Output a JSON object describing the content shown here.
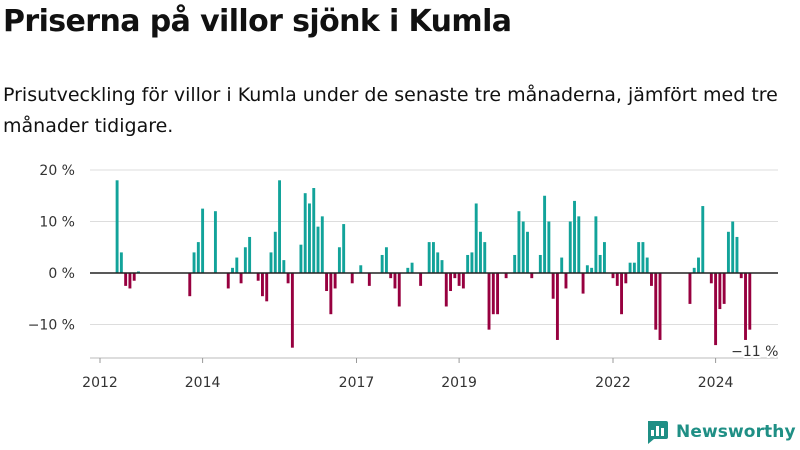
{
  "title": "Priserna på villor sjönk i Kumla",
  "subtitle": "Prisutveckling för villor i Kumla under de senaste tre månaderna, jämfört med tre månader tidigare.",
  "brand": {
    "name": "Newsworthy",
    "icon": "bar-chart-logo-icon"
  },
  "colors": {
    "positive": "#12a39a",
    "negative": "#97003f",
    "axis": "#222222",
    "grid": "#dddddd",
    "brand": "#1f8f85"
  },
  "chart_data": {
    "type": "bar",
    "x_start": "2012-05",
    "x_interval": "month",
    "x_range": [
      "2012-01",
      "2025-06"
    ],
    "ylim": [
      -16,
      20
    ],
    "yticks": [
      {
        "value": 20,
        "label": "20 %"
      },
      {
        "value": 10,
        "label": "10 %"
      },
      {
        "value": 0,
        "label": "0 %"
      },
      {
        "value": -10,
        "label": "−10 %"
      }
    ],
    "xticks": [
      {
        "date": "2012-01",
        "label": "2012"
      },
      {
        "date": "2014-01",
        "label": "2014"
      },
      {
        "date": "2017-01",
        "label": "2017"
      },
      {
        "date": "2019-01",
        "label": "2019"
      },
      {
        "date": "2022-01",
        "label": "2022"
      },
      {
        "date": "2024-01",
        "label": "2024"
      }
    ],
    "values": [
      18,
      4,
      -2.5,
      -3,
      -1.5,
      0.3,
      null,
      null,
      null,
      null,
      null,
      null,
      null,
      null,
      null,
      null,
      null,
      -4.5,
      4,
      6,
      12.5,
      null,
      null,
      12,
      null,
      null,
      -3,
      1,
      3,
      -2,
      5,
      7,
      null,
      -1.5,
      -4.5,
      -5.5,
      4,
      8,
      18,
      2.5,
      -2,
      -14.5,
      null,
      5.5,
      15.5,
      13.5,
      16.5,
      9,
      11,
      -3.5,
      -8,
      -3,
      5,
      9.5,
      null,
      -2,
      null,
      1.5,
      null,
      -2.5,
      null,
      null,
      3.5,
      5,
      -1,
      -3,
      -6.5,
      null,
      1,
      2,
      null,
      -2.5,
      null,
      6,
      6,
      4,
      2.5,
      -6.5,
      -3.5,
      -1,
      -2.5,
      -3,
      3.5,
      4,
      13.5,
      8,
      6,
      -11,
      -8,
      -8,
      null,
      -1,
      null,
      3.5,
      12,
      10,
      8,
      -1,
      null,
      3.5,
      15,
      10,
      -5,
      -13,
      3,
      -3,
      10,
      14,
      11,
      -4,
      1.5,
      1,
      11,
      3.5,
      6,
      null,
      -1,
      -2.5,
      -8,
      -2,
      2,
      2,
      6,
      6,
      3,
      -2.5,
      -11,
      -13,
      null,
      null,
      null,
      null,
      null,
      null,
      -6,
      1,
      3,
      13,
      null,
      -2,
      -14,
      -7,
      -6,
      8,
      10,
      7,
      -1,
      -13,
      -11
    ],
    "annotations": [
      {
        "date": "2024-09",
        "label": "−11 %"
      }
    ]
  }
}
